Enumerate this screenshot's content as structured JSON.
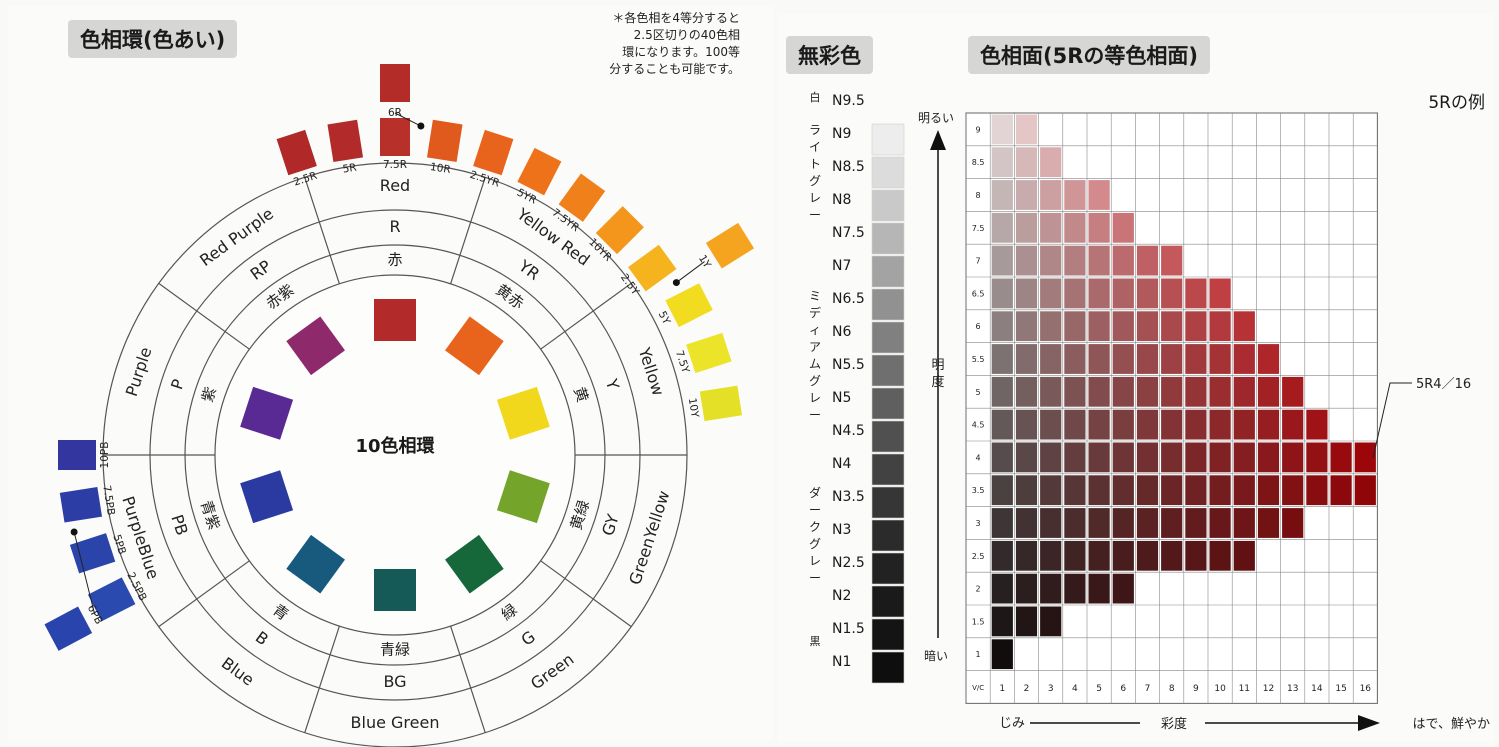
{
  "left": {
    "title": "色相環(色あい)",
    "note": "＊各色相を4等分すると\n2.5区切りの40色相\n環になります。100等\n分することも可能です。",
    "center_label": "10色相環",
    "hues": [
      {
        "en": "Red",
        "code": "R",
        "ja": "赤",
        "color": "#b22a2a",
        "angle": 0
      },
      {
        "en": "Yellow Red",
        "code": "YR",
        "ja": "黄赤",
        "color": "#e8641c",
        "angle": 36
      },
      {
        "en": "Yellow",
        "code": "Y",
        "ja": "黄",
        "color": "#f2d81c",
        "angle": 72
      },
      {
        "en": "GreenYellow",
        "code": "GY",
        "ja": "黄緑",
        "color": "#74a52a",
        "angle": 108
      },
      {
        "en": "Green",
        "code": "G",
        "ja": "緑",
        "color": "#16683a",
        "angle": 144
      },
      {
        "en": "Blue Green",
        "code": "BG",
        "ja": "青緑",
        "color": "#155a56",
        "angle": 180
      },
      {
        "en": "Blue",
        "code": "B",
        "ja": "青",
        "color": "#175a7e",
        "angle": 216
      },
      {
        "en": "PurpleBlue",
        "code": "PB",
        "ja": "青紫",
        "color": "#2a3aa0",
        "angle": 252
      },
      {
        "en": "Purple",
        "code": "P",
        "ja": "紫",
        "color": "#5a2a94",
        "angle": 288
      },
      {
        "en": "Red Purple",
        "code": "RP",
        "ja": "赤紫",
        "color": "#8e2a6c",
        "angle": 324
      }
    ],
    "outer_chips": [
      {
        "label": "2.5R",
        "color": "#b02828"
      },
      {
        "label": "5R",
        "color": "#b32a2a"
      },
      {
        "label": "7.5R",
        "color": "#b8302a"
      },
      {
        "label": "10R",
        "color": "#e05a1e"
      },
      {
        "label": "2.5YR",
        "color": "#e8641c"
      },
      {
        "label": "5YR",
        "color": "#ee721a"
      },
      {
        "label": "7.5YR",
        "color": "#f0801a"
      },
      {
        "label": "10YR",
        "color": "#f4961c"
      },
      {
        "label": "2.5Y",
        "color": "#f5b41e"
      },
      {
        "label": "5Y",
        "color": "#f2dc20"
      },
      {
        "label": "7.5Y",
        "color": "#ece428"
      },
      {
        "label": "10Y",
        "color": "#e4e028"
      },
      {
        "label": "2.5PB",
        "color": "#2a4ab0"
      },
      {
        "label": "5PB",
        "color": "#2a44aa"
      },
      {
        "label": "7.5PB",
        "color": "#2c3ea6"
      },
      {
        "label": "10PB",
        "color": "#32369e"
      }
    ],
    "extra_chips": [
      {
        "label": "6R",
        "color": "#b42c28"
      },
      {
        "label": "1Y",
        "color": "#f4a41e"
      },
      {
        "label": "6PB",
        "color": "#2a44ae"
      }
    ]
  },
  "achromatic": {
    "title": "無彩色",
    "side_top": "白",
    "side_light": "ライトグレー",
    "side_mid": "ミディアムグレー",
    "side_dark": "ダークグレー",
    "side_bottom": "黒",
    "steps": [
      {
        "label": "N9.5",
        "gray": "#ffffff"
      },
      {
        "label": "N9",
        "gray": "#ededed"
      },
      {
        "label": "N8.5",
        "gray": "#dcdcdc"
      },
      {
        "label": "N8",
        "gray": "#c9c9c9"
      },
      {
        "label": "N7.5",
        "gray": "#b6b6b6"
      },
      {
        "label": "N7",
        "gray": "#a3a3a3"
      },
      {
        "label": "N6.5",
        "gray": "#919191"
      },
      {
        "label": "N6",
        "gray": "#808080"
      },
      {
        "label": "N5.5",
        "gray": "#6f6f6f"
      },
      {
        "label": "N5",
        "gray": "#5f5f5f"
      },
      {
        "label": "N4.5",
        "gray": "#505050"
      },
      {
        "label": "N4",
        "gray": "#424242"
      },
      {
        "label": "N3.5",
        "gray": "#363636"
      },
      {
        "label": "N3",
        "gray": "#2b2b2b"
      },
      {
        "label": "N2.5",
        "gray": "#222222"
      },
      {
        "label": "N2",
        "gray": "#1a1a1a"
      },
      {
        "label": "N1.5",
        "gray": "#141414"
      },
      {
        "label": "N1",
        "gray": "#0e0e0e"
      }
    ]
  },
  "hue_plane": {
    "title": "色相面(5Rの等色相面)",
    "example_label": "5Rの例",
    "bright": "明るい",
    "value_axis": "明度",
    "dark": "暗い",
    "chroma_left": "じみ",
    "chroma_axis": "彩度",
    "chroma_right": "はで、鮮やか",
    "corner": "V/C",
    "callout": "5R4／16",
    "value_rows": [
      "9",
      "8.5",
      "8",
      "7.5",
      "7",
      "6.5",
      "6",
      "5.5",
      "5",
      "4.5",
      "4",
      "3.5",
      "3",
      "2.5",
      "2",
      "1.5",
      "1"
    ],
    "chroma_cols": [
      "1",
      "2",
      "3",
      "4",
      "5",
      "6",
      "7",
      "8",
      "9",
      "10",
      "11",
      "12",
      "13",
      "14",
      "15",
      "16"
    ],
    "max_chroma": [
      2,
      3,
      5,
      6,
      8,
      10,
      11,
      12,
      13,
      14,
      16,
      16,
      13,
      11,
      6,
      3,
      1
    ]
  }
}
